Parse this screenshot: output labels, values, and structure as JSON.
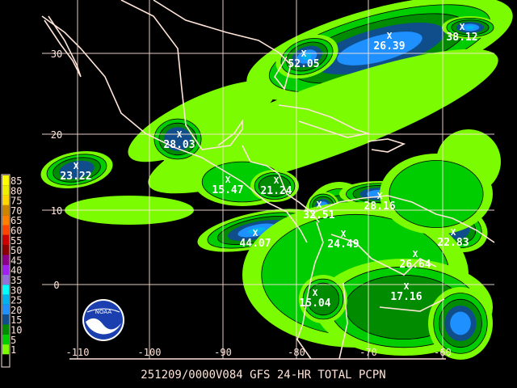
{
  "title": "251209/0000V084 GFS 24-HR TOTAL PCPN",
  "logo_text": "NOAA",
  "axes": {
    "lon_ticks": [
      "-110",
      "-100",
      "-90",
      "-80",
      "-70",
      "-60"
    ],
    "lat_ticks": [
      "30",
      "20",
      "10",
      "0"
    ]
  },
  "legend": {
    "levels": [
      {
        "label": "85",
        "color": "#ffff00"
      },
      {
        "label": "80",
        "color": "#eeee00"
      },
      {
        "label": "75",
        "color": "#ffd700"
      },
      {
        "label": "70",
        "color": "#cd8500"
      },
      {
        "label": "65",
        "color": "#ff7f00"
      },
      {
        "label": "60",
        "color": "#ff4500"
      },
      {
        "label": "55",
        "color": "#cd0000"
      },
      {
        "label": "50",
        "color": "#8b0000"
      },
      {
        "label": "45",
        "color": "#8b008b"
      },
      {
        "label": "40",
        "color": "#a020f0"
      },
      {
        "label": "35",
        "color": "#9370db"
      },
      {
        "label": "30",
        "color": "#00ffff"
      },
      {
        "label": "25",
        "color": "#00b2ee"
      },
      {
        "label": "20",
        "color": "#1e90ff"
      },
      {
        "label": "15",
        "color": "#104e8b"
      },
      {
        "label": "10",
        "color": "#008b00"
      },
      {
        "label": "5",
        "color": "#00cd00"
      },
      {
        "label": "1",
        "color": "#7cfc00"
      },
      {
        "label": "",
        "color": "#000000"
      }
    ]
  },
  "maxima": [
    "52.05",
    "26.39",
    "38.12",
    "28.03",
    "23.22",
    "15.47",
    "21.24",
    "32.51",
    "28.16",
    "44.07",
    "24.49",
    "26.64",
    "22.83",
    "15.04",
    "17.16"
  ],
  "marker_symbol": "X"
}
